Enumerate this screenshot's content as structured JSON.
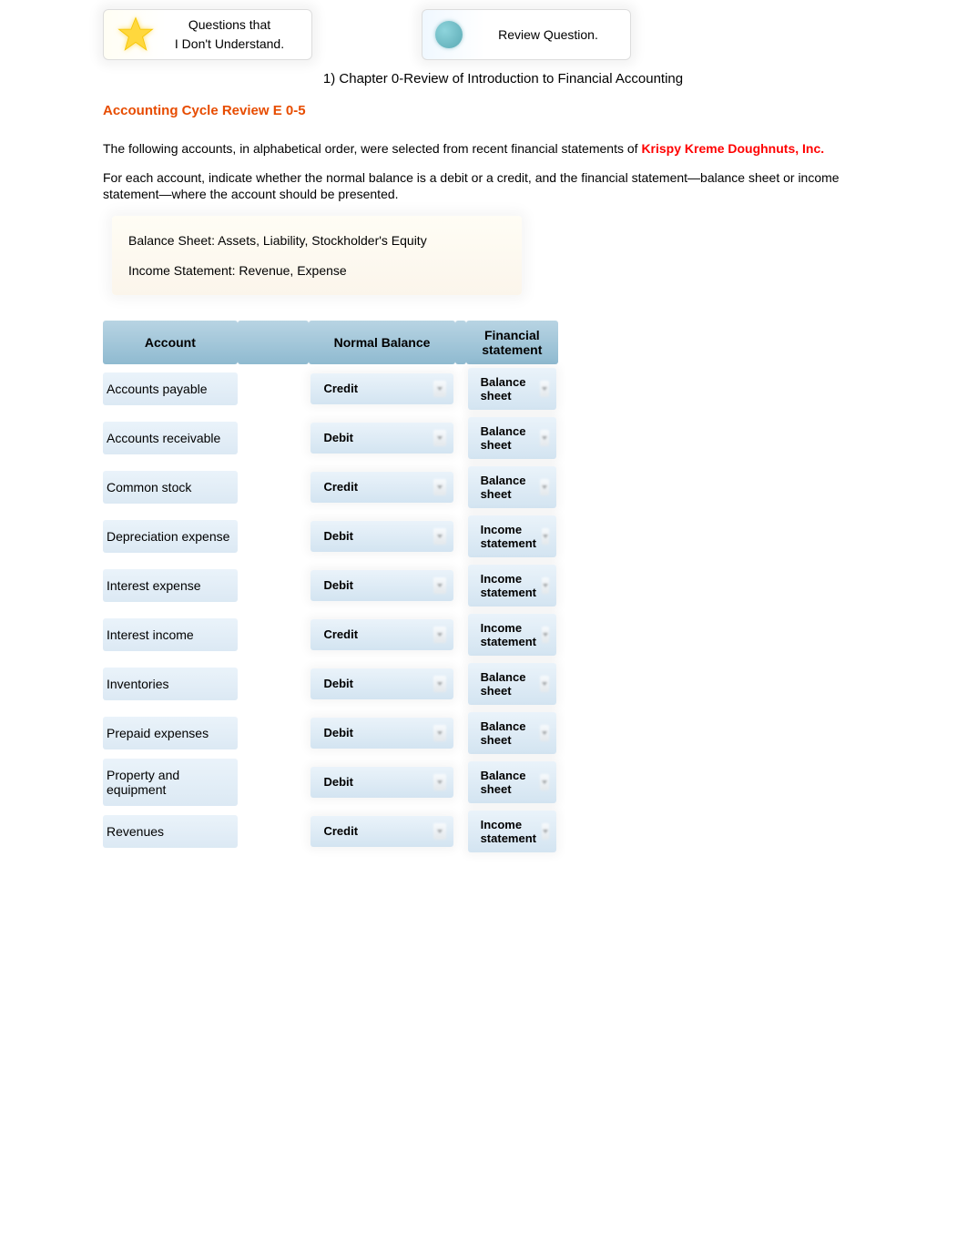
{
  "cards": {
    "questions": {
      "line1": "Questions that",
      "line2": "I Don't Understand."
    },
    "review": {
      "label": "Review Question."
    }
  },
  "chapter_heading": "1) Chapter 0-Review of Introduction to Financial Accounting",
  "section_title": "Accounting Cycle Review E 0-5",
  "intro_prefix": "The following accounts, in alphabetical order, were selected from recent financial statements of ",
  "company_name": "Krispy Kreme Doughnuts, Inc.",
  "instruction": "For each account, indicate whether the normal balance is a debit or a credit, and the financial statement—balance sheet or income statement—where the account should be presented.",
  "info_box": {
    "line1": "Balance Sheet: Assets, Liability, Stockholder's Equity",
    "line2": "Income Statement: Revenue, Expense"
  },
  "table": {
    "columns": [
      "Account",
      "Normal Balance",
      "Financial statement"
    ],
    "header_bg": "#a4c8db",
    "row_bg": "#e2eef7",
    "rows": [
      {
        "account": "Accounts payable",
        "balance": "Credit",
        "statement": "Balance sheet"
      },
      {
        "account": "Accounts receivable",
        "balance": "Debit",
        "statement": "Balance sheet"
      },
      {
        "account": "Common stock",
        "balance": "Credit",
        "statement": "Balance sheet"
      },
      {
        "account": "Depreciation expense",
        "balance": "Debit",
        "statement": "Income statement"
      },
      {
        "account": "Interest expense",
        "balance": "Debit",
        "statement": "Income statement"
      },
      {
        "account": "Interest income",
        "balance": "Credit",
        "statement": "Income statement"
      },
      {
        "account": "Inventories",
        "balance": "Debit",
        "statement": "Balance sheet"
      },
      {
        "account": "Prepaid expenses",
        "balance": "Debit",
        "statement": "Balance sheet"
      },
      {
        "account": "Property and equipment",
        "balance": "Debit",
        "statement": "Balance sheet"
      },
      {
        "account": "Revenues",
        "balance": "Credit",
        "statement": "Income statement"
      }
    ]
  },
  "colors": {
    "section_title": "#e74c00",
    "company": "#ff0000"
  }
}
